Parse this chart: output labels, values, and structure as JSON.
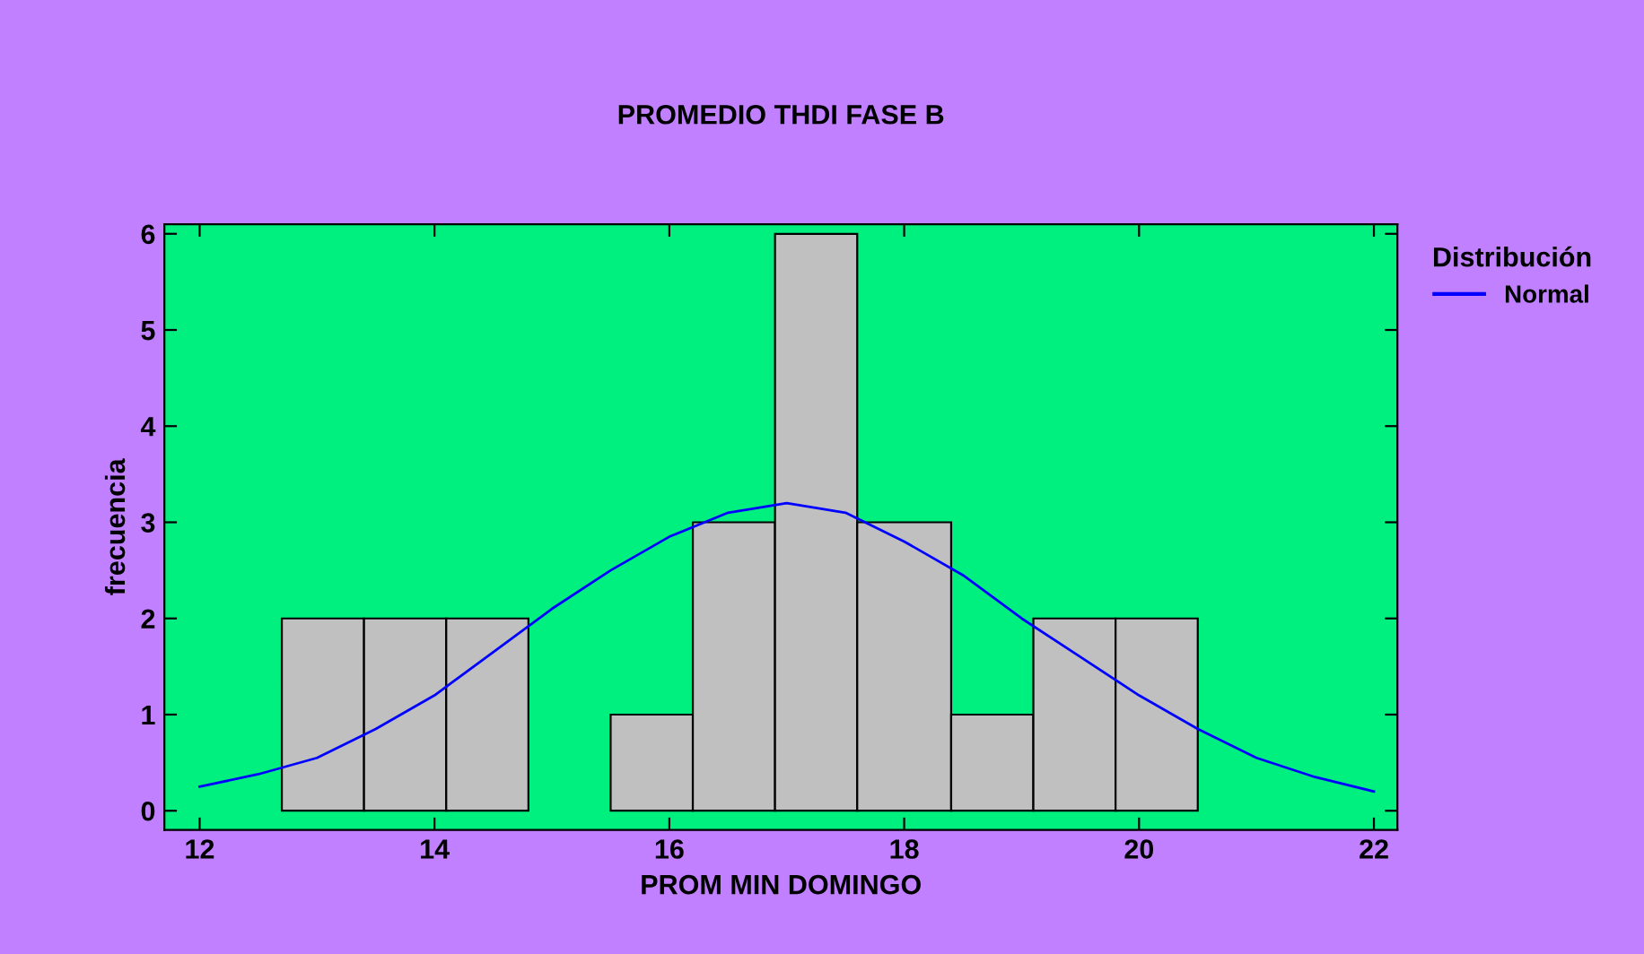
{
  "chart_data": {
    "type": "histogram",
    "title": "PROMEDIO THDI FASE B",
    "xlabel": "PROM MIN DOMINGO",
    "ylabel": "frecuencia",
    "legend_title": "Distribución",
    "legend": "right",
    "bins": [
      12.7,
      13.4,
      14.1,
      14.8,
      15.5,
      16.2,
      16.9,
      17.6,
      18.4,
      19.1,
      19.8,
      20.5
    ],
    "values": [
      2,
      2,
      2,
      0,
      1,
      3,
      6,
      3,
      1,
      2,
      2
    ],
    "color": "#c0c0c0",
    "series": [
      {
        "name": "Normal",
        "type": "line",
        "color": "#0000ff",
        "x": [
          12,
          12.5,
          13,
          13.5,
          14,
          14.5,
          15,
          15.5,
          16,
          16.5,
          17,
          17.5,
          18,
          18.5,
          19,
          19.5,
          20,
          20.5,
          21,
          21.5,
          22
        ],
        "values": [
          0.25,
          0.38,
          0.55,
          0.85,
          1.2,
          1.65,
          2.1,
          2.5,
          2.85,
          3.1,
          3.2,
          3.1,
          2.8,
          2.45,
          2.0,
          1.6,
          1.2,
          0.85,
          0.55,
          0.35,
          0.2
        ]
      }
    ],
    "xlim": [
      11.7,
      22.2
    ],
    "ylim": [
      -0.2,
      6.1
    ],
    "xticks": [
      12,
      14,
      16,
      18,
      20,
      22
    ],
    "yticks": [
      0,
      1,
      2,
      3,
      4,
      5,
      6
    ],
    "grid": false
  }
}
